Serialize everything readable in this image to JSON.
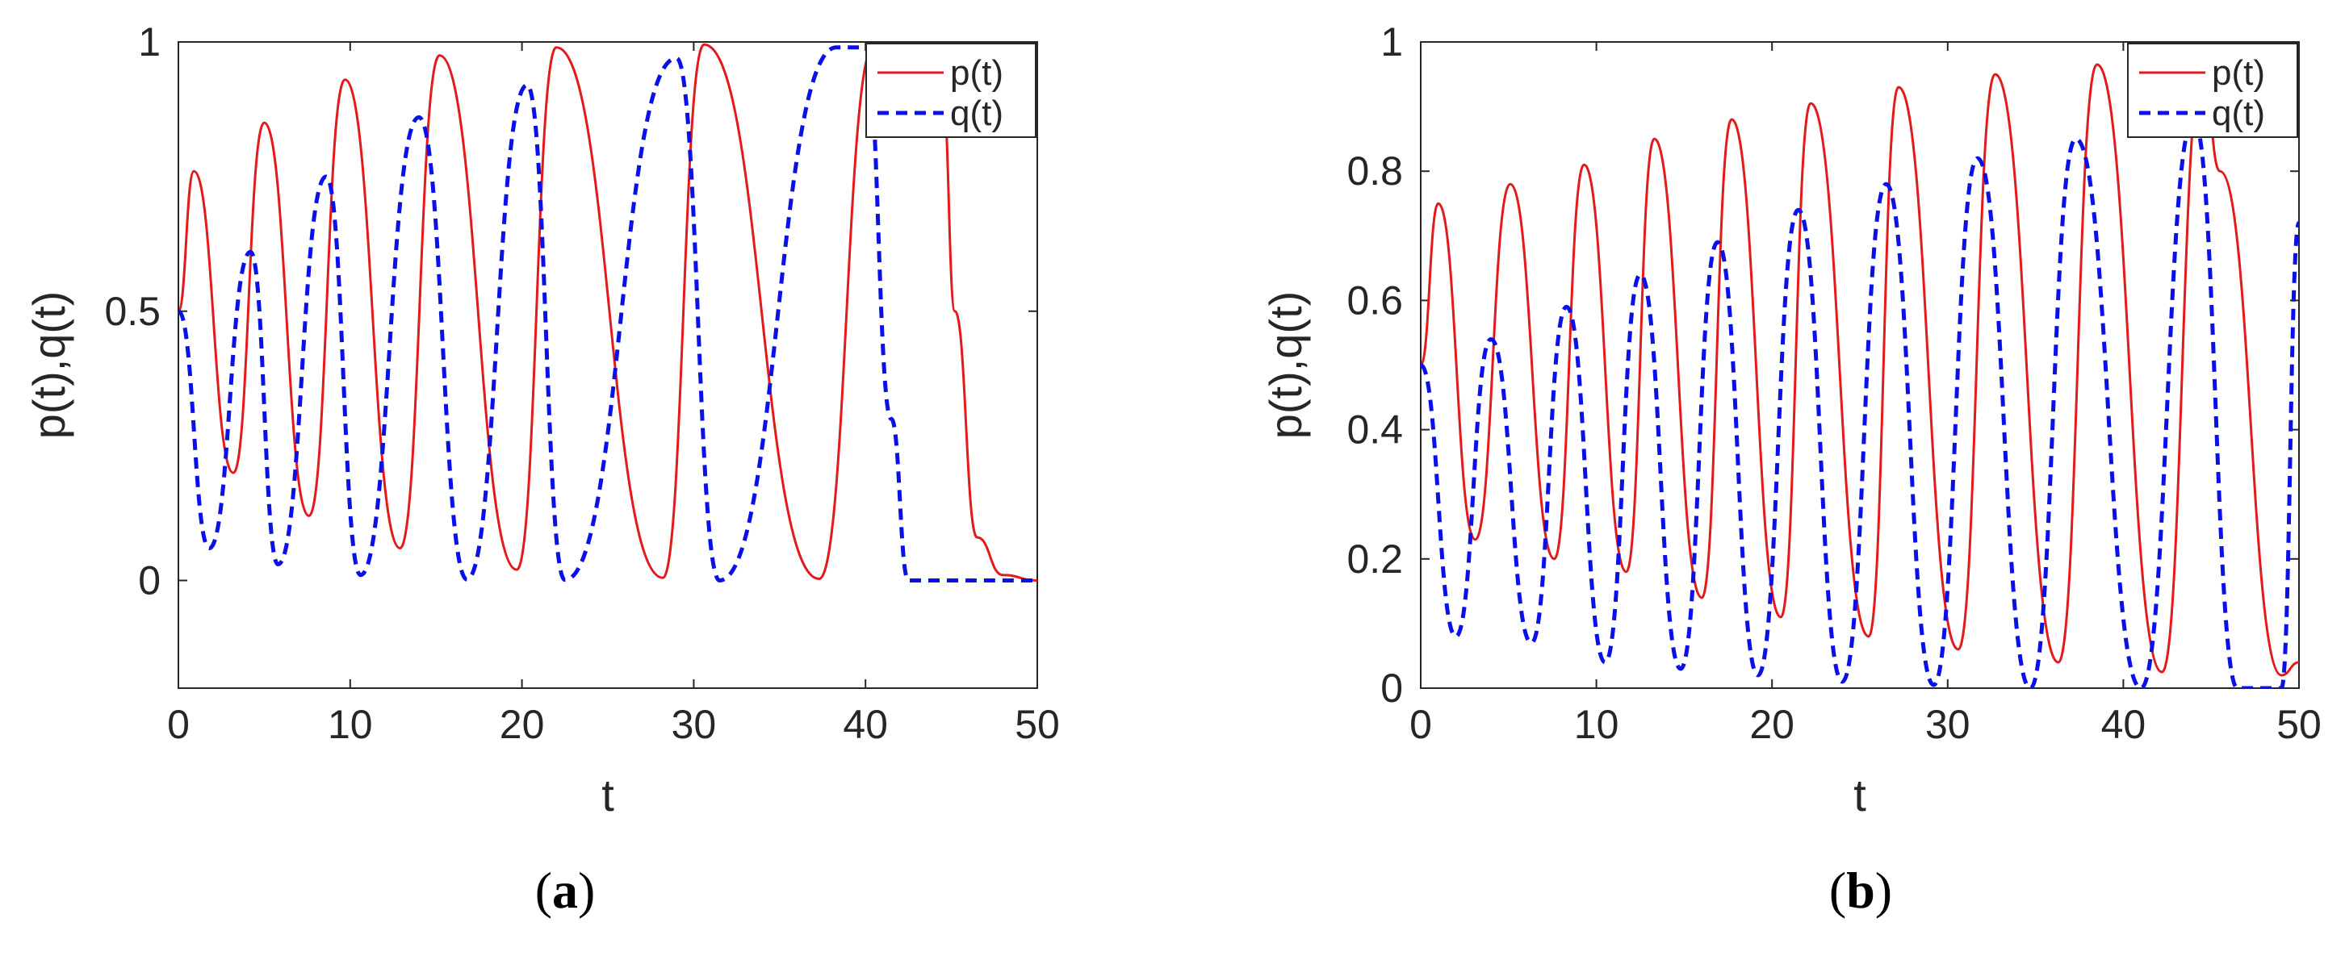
{
  "chart_data": [
    {
      "type": "line",
      "caption": "(a)",
      "caption_letter": "a",
      "xlabel": "t",
      "ylabel": "p(t),q(t)",
      "xlim": [
        0,
        50
      ],
      "ylim": [
        -0.2,
        1
      ],
      "xticks": [
        0,
        10,
        20,
        30,
        40,
        50
      ],
      "xtick_labels": [
        "0",
        "10",
        "20",
        "30",
        "40",
        "50"
      ],
      "yticks": [
        0,
        0.5,
        1
      ],
      "ytick_labels": [
        "0",
        "0.5",
        "1"
      ],
      "grid": false,
      "legend_position": "top-right",
      "series": [
        {
          "name": "p(t)",
          "color": "#e31a1c",
          "style": "solid",
          "points": [
            [
              0,
              0.5
            ],
            [
              0.9,
              0.76
            ],
            [
              3.2,
              0.2
            ],
            [
              5.0,
              0.85
            ],
            [
              7.6,
              0.12
            ],
            [
              9.7,
              0.93
            ],
            [
              12.9,
              0.06
            ],
            [
              15.2,
              0.975
            ],
            [
              19.7,
              0.02
            ],
            [
              22.0,
              0.99
            ],
            [
              28.2,
              0.005
            ],
            [
              30.6,
              0.995
            ],
            [
              37.3,
              0.003
            ],
            [
              40.5,
              0.995
            ],
            [
              42.0,
              0.98
            ],
            [
              44.5,
              0.9
            ],
            [
              45.2,
              0.5
            ],
            [
              46.5,
              0.08
            ],
            [
              48,
              0.01
            ],
            [
              50,
              0.0
            ]
          ]
        },
        {
          "name": "q(t)",
          "color": "#0a10e8",
          "style": "dashed",
          "points": [
            [
              0,
              0.5
            ],
            [
              1.8,
              0.06
            ],
            [
              4.2,
              0.61
            ],
            [
              5.8,
              0.03
            ],
            [
              8.6,
              0.75
            ],
            [
              10.6,
              0.01
            ],
            [
              14.0,
              0.86
            ],
            [
              16.8,
              0.002
            ],
            [
              20.3,
              0.92
            ],
            [
              22.5,
              0.001
            ],
            [
              29.0,
              0.97
            ],
            [
              31.5,
              0.0
            ],
            [
              38.3,
              0.99
            ],
            [
              40,
              0.99
            ],
            [
              41.5,
              0.3
            ],
            [
              42.5,
              0.0
            ],
            [
              50,
              0.0
            ]
          ]
        }
      ]
    },
    {
      "type": "line",
      "caption": "(b)",
      "caption_letter": "b",
      "xlabel": "t",
      "ylabel": "p(t),q(t)",
      "xlim": [
        0,
        50
      ],
      "ylim": [
        0,
        1
      ],
      "xticks": [
        0,
        10,
        20,
        30,
        40,
        50
      ],
      "xtick_labels": [
        "0",
        "10",
        "20",
        "30",
        "40",
        "50"
      ],
      "yticks": [
        0,
        0.2,
        0.4,
        0.6,
        0.8,
        1
      ],
      "ytick_labels": [
        "0",
        "0.2",
        "0.4",
        "0.6",
        "0.8",
        "1"
      ],
      "grid": false,
      "legend_position": "top-right",
      "series": [
        {
          "name": "p(t)",
          "color": "#e31a1c",
          "style": "solid",
          "points": [
            [
              0,
              0.5
            ],
            [
              1.0,
              0.75
            ],
            [
              3.1,
              0.23
            ],
            [
              5.1,
              0.78
            ],
            [
              7.6,
              0.2
            ],
            [
              9.3,
              0.81
            ],
            [
              11.7,
              0.18
            ],
            [
              13.3,
              0.85
            ],
            [
              16.0,
              0.14
            ],
            [
              17.7,
              0.88
            ],
            [
              20.5,
              0.11
            ],
            [
              22.2,
              0.905
            ],
            [
              25.5,
              0.08
            ],
            [
              27.2,
              0.93
            ],
            [
              30.6,
              0.06
            ],
            [
              32.7,
              0.95
            ],
            [
              36.3,
              0.04
            ],
            [
              38.5,
              0.965
            ],
            [
              42.2,
              0.025
            ],
            [
              44.5,
              0.96
            ],
            [
              45.5,
              0.8
            ],
            [
              49.0,
              0.02
            ],
            [
              50,
              0.04
            ]
          ]
        },
        {
          "name": "q(t)",
          "color": "#0a10e8",
          "style": "dashed",
          "points": [
            [
              0,
              0.5
            ],
            [
              2.0,
              0.08
            ],
            [
              4.0,
              0.54
            ],
            [
              6.3,
              0.07
            ],
            [
              8.3,
              0.59
            ],
            [
              10.5,
              0.04
            ],
            [
              12.5,
              0.64
            ],
            [
              14.8,
              0.03
            ],
            [
              16.9,
              0.69
            ],
            [
              19.2,
              0.02
            ],
            [
              21.5,
              0.74
            ],
            [
              24.0,
              0.01
            ],
            [
              26.5,
              0.78
            ],
            [
              29.2,
              0.005
            ],
            [
              31.7,
              0.82
            ],
            [
              34.7,
              0.0
            ],
            [
              37.3,
              0.85
            ],
            [
              41.0,
              0.0
            ],
            [
              44.0,
              0.88
            ],
            [
              46.5,
              0.0
            ],
            [
              49.0,
              0.0
            ],
            [
              50,
              0.72
            ]
          ]
        }
      ]
    }
  ]
}
